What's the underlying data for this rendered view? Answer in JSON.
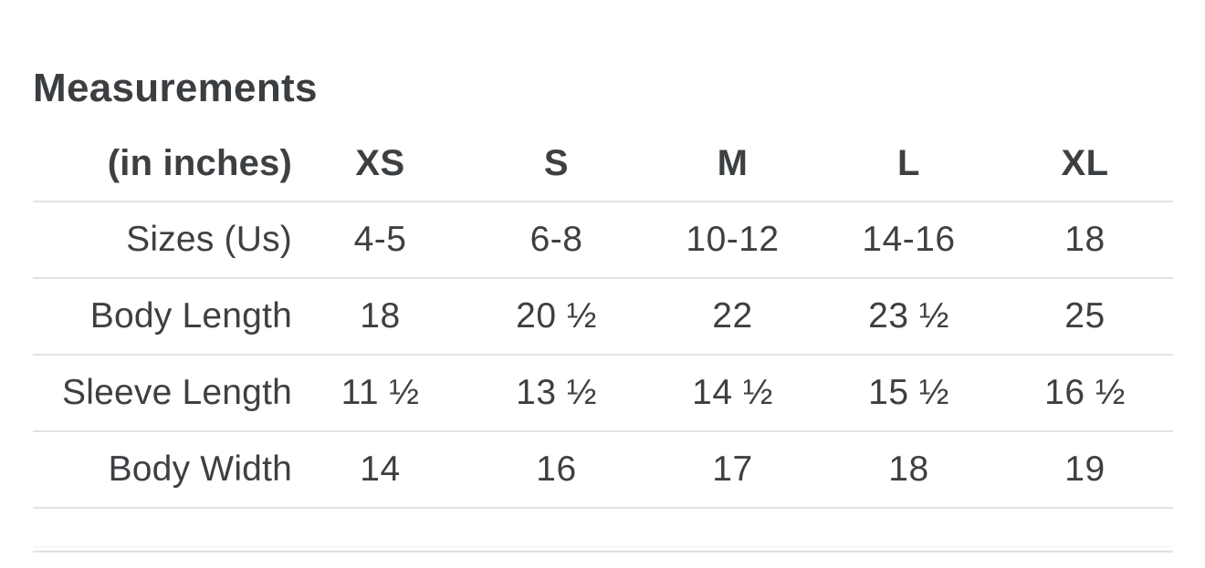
{
  "section": {
    "title": "Measurements"
  },
  "table": {
    "header": {
      "label": "(in inches)",
      "columns": [
        "XS",
        "S",
        "M",
        "L",
        "XL"
      ]
    },
    "rows": [
      {
        "label": "Sizes (Us)",
        "values": [
          "4-5",
          "6-8",
          "10-12",
          "14-16",
          "18"
        ]
      },
      {
        "label": "Body Length",
        "values": [
          "18",
          "20 ½",
          "22",
          "23 ½",
          "25"
        ]
      },
      {
        "label": "Sleeve Length",
        "values": [
          "11 ½",
          "13 ½",
          "14 ½",
          "15 ½",
          "16 ½"
        ]
      },
      {
        "label": "Body Width",
        "values": [
          "14",
          "16",
          "17",
          "18",
          "19"
        ]
      }
    ]
  },
  "colors": {
    "text": "#3d4043",
    "divider": "#e2e2e2",
    "background": "#ffffff"
  }
}
